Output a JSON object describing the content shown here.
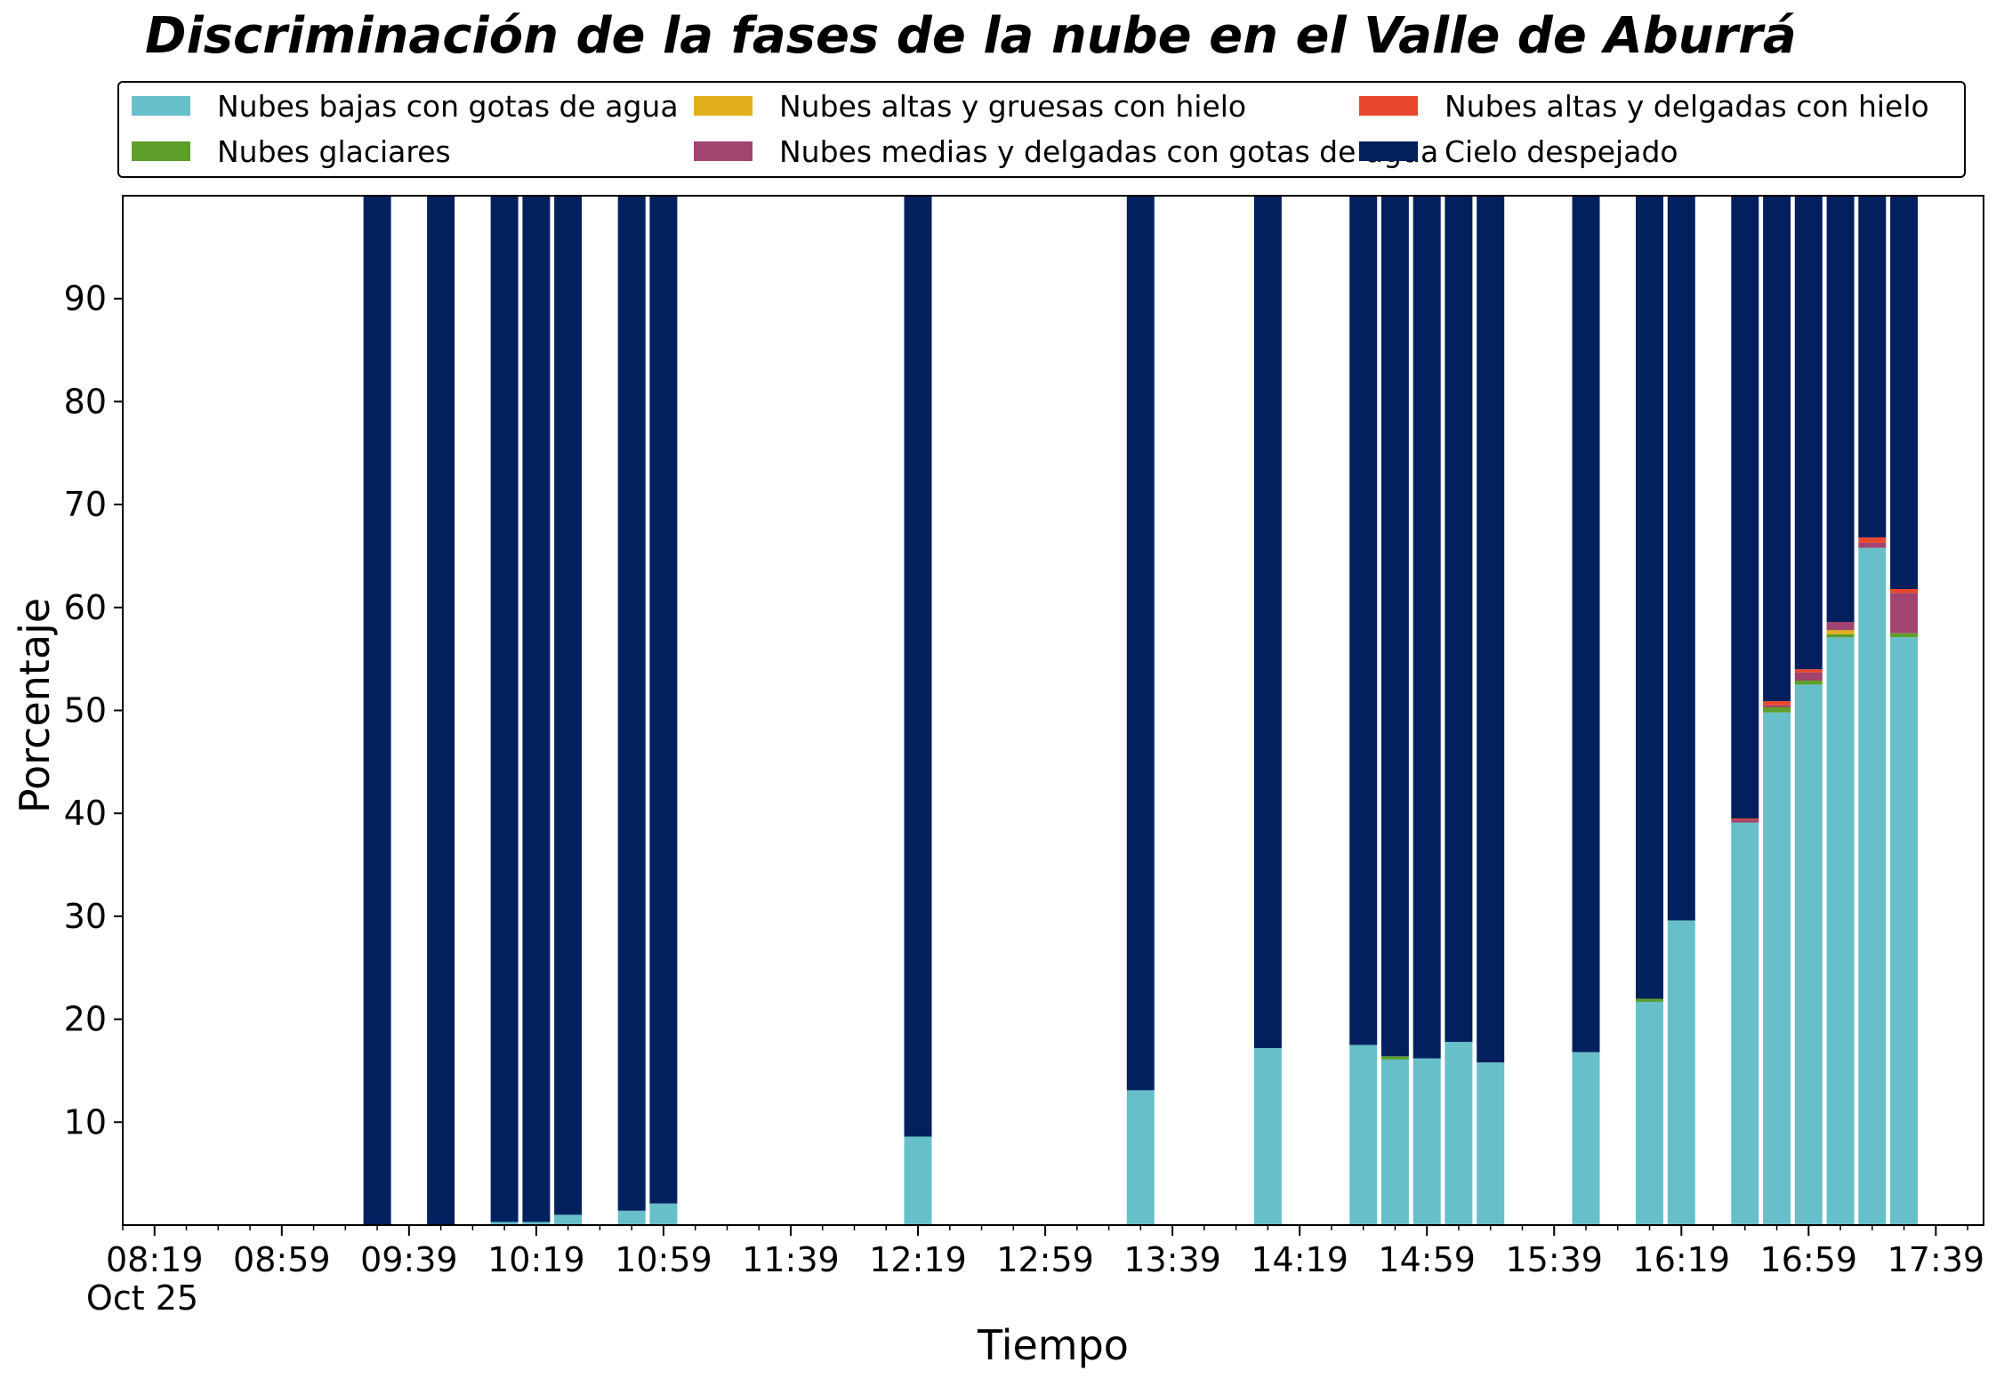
{
  "chart_data": {
    "type": "bar",
    "stacked": true,
    "title": "Discriminación de la fases de la nube en el Valle de Aburrá",
    "xlabel": "Tiempo",
    "ylabel": "Porcentaje",
    "ylim": [
      0,
      100
    ],
    "yticks": [
      10,
      20,
      30,
      40,
      50,
      60,
      70,
      80,
      90
    ],
    "xrange_minutes": [
      -10,
      575
    ],
    "xtick_labels": [
      "08:19",
      "08:59",
      "09:39",
      "10:19",
      "10:59",
      "11:39",
      "12:19",
      "12:59",
      "13:39",
      "14:19",
      "14:59",
      "15:39",
      "16:19",
      "16:59",
      "17:39"
    ],
    "xtick_minutes": [
      0,
      40,
      80,
      120,
      160,
      200,
      240,
      280,
      320,
      360,
      400,
      440,
      480,
      520,
      560
    ],
    "date_label": "Oct 25",
    "legend_position": "top",
    "grid": false,
    "x": [
      "09:29",
      "09:49",
      "10:09",
      "10:19",
      "10:29",
      "10:49",
      "10:59",
      "12:19",
      "13:29",
      "14:09",
      "14:39",
      "14:49",
      "14:59",
      "15:09",
      "15:19",
      "15:49",
      "16:09",
      "16:19",
      "16:39",
      "16:49",
      "16:59",
      "17:09",
      "17:19",
      "17:29"
    ],
    "x_minutes": [
      70,
      90,
      110,
      120,
      130,
      150,
      160,
      240,
      310,
      350,
      380,
      390,
      400,
      410,
      420,
      450,
      470,
      480,
      500,
      510,
      520,
      530,
      540,
      550
    ],
    "series": [
      {
        "name": "Nubes bajas con gotas de agua",
        "color": "#67bfca",
        "values": [
          0,
          0,
          0.3,
          0.3,
          1.0,
          1.4,
          2.1,
          8.6,
          13.1,
          17.2,
          17.5,
          16.1,
          16.2,
          17.8,
          15.8,
          16.8,
          21.7,
          29.6,
          39.1,
          49.8,
          52.5,
          57.1,
          65.8,
          57.1
        ]
      },
      {
        "name": "Nubes glaciares",
        "color": "#5d9f2a",
        "values": [
          0,
          0,
          0,
          0,
          0,
          0,
          0,
          0,
          0,
          0,
          0,
          0.3,
          0,
          0,
          0,
          0,
          0.3,
          0,
          0,
          0.5,
          0.4,
          0.3,
          0,
          0.4
        ]
      },
      {
        "name": "Nubes altas y gruesas con hielo",
        "color": "#e2b01b",
        "values": [
          0,
          0,
          0,
          0,
          0,
          0,
          0,
          0,
          0,
          0,
          0,
          0,
          0,
          0,
          0,
          0,
          0,
          0,
          0,
          0,
          0,
          0.4,
          0,
          0
        ]
      },
      {
        "name": "Nubes medias y delgadas con gotas de agua",
        "color": "#a1446f",
        "values": [
          0,
          0,
          0,
          0,
          0,
          0,
          0,
          0,
          0,
          0,
          0,
          0,
          0,
          0,
          0,
          0,
          0,
          0,
          0.3,
          0.2,
          0.8,
          0.8,
          0.5,
          3.9
        ]
      },
      {
        "name": "Nubes altas y delgadas con hielo",
        "color": "#e9472b",
        "values": [
          0,
          0,
          0,
          0,
          0,
          0,
          0,
          0,
          0,
          0,
          0,
          0,
          0,
          0,
          0,
          0,
          0,
          0,
          0.1,
          0.4,
          0.3,
          0,
          0.5,
          0.4
        ]
      },
      {
        "name": "Cielo despejado",
        "color": "#03205e",
        "values": [
          100,
          100,
          99.7,
          99.7,
          99.0,
          98.6,
          97.9,
          91.4,
          86.9,
          82.8,
          82.5,
          83.6,
          83.8,
          82.2,
          84.2,
          83.2,
          78.0,
          70.4,
          60.5,
          49.1,
          46.0,
          41.4,
          33.2,
          38.2
        ]
      }
    ]
  }
}
